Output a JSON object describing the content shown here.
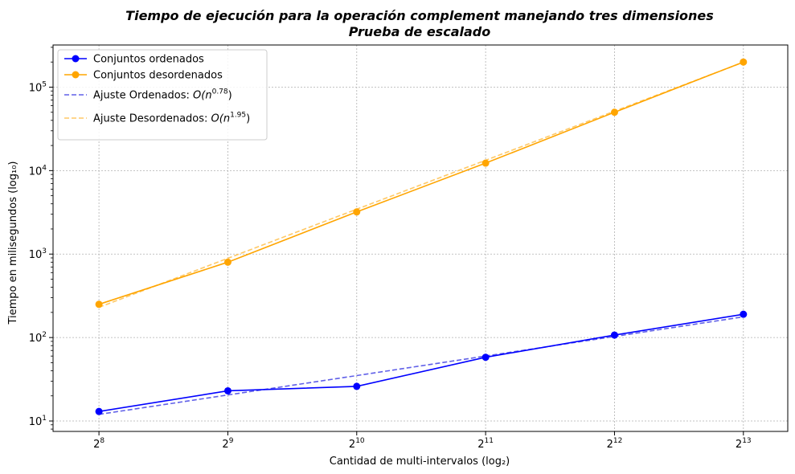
{
  "chart_data": {
    "type": "line",
    "title": "Tiempo de ejecución para la operación complement manejando tres dimensiones",
    "subtitle": "Prueba de escalado",
    "xlabel": "Cantidad de multi-intervalos (log₂)",
    "ylabel": "Tiempo en milisegundos (log₁₀)",
    "xscale": "log2",
    "yscale": "log10",
    "x": [
      256,
      512,
      1024,
      2048,
      4096,
      8192
    ],
    "x_tick_labels": [
      {
        "base": "2",
        "exp": "8"
      },
      {
        "base": "2",
        "exp": "9"
      },
      {
        "base": "2",
        "exp": "10"
      },
      {
        "base": "2",
        "exp": "11"
      },
      {
        "base": "2",
        "exp": "12"
      },
      {
        "base": "2",
        "exp": "13"
      }
    ],
    "y_tick_labels": [
      {
        "base": "10",
        "exp": "1"
      },
      {
        "base": "10",
        "exp": "2"
      },
      {
        "base": "10",
        "exp": "3"
      },
      {
        "base": "10",
        "exp": "4"
      },
      {
        "base": "10",
        "exp": "5"
      }
    ],
    "xlim": [
      200,
      10400
    ],
    "ylim": [
      7.5,
      320000
    ],
    "grid": true,
    "legend_position": "top-left",
    "series": [
      {
        "name": "Conjuntos ordenados",
        "style": "solid-marker",
        "color": "#0000ff",
        "values": [
          13,
          23,
          26,
          58,
          107,
          190
        ]
      },
      {
        "name": "Conjuntos desordenados",
        "style": "solid-marker",
        "color": "#ffa500",
        "values": [
          250,
          800,
          3200,
          12300,
          50000,
          200000
        ]
      },
      {
        "name_prefix": "Ajuste Ordenados: ",
        "name_math": "O(n",
        "name_exp": "0.78",
        "name_suffix": ")",
        "style": "dashed",
        "color": "#6060e8",
        "values": [
          12,
          20.5,
          35,
          60,
          103,
          177
        ]
      },
      {
        "name_prefix": "Ajuste Desordenados: ",
        "name_math": "O(n",
        "name_exp": "1.95",
        "name_suffix": ")",
        "style": "dashed",
        "color": "#ffc966",
        "values": [
          230,
          890,
          3450,
          13300,
          51500,
          199000
        ]
      }
    ]
  }
}
